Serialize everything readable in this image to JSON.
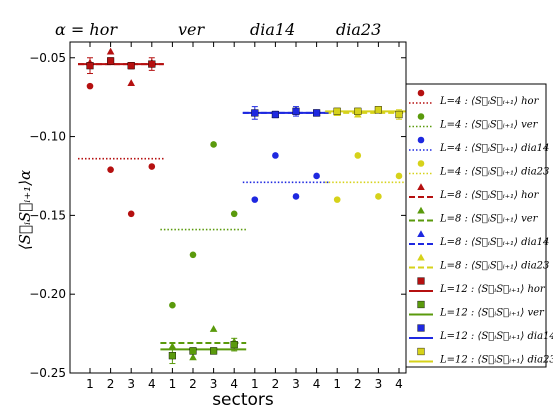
{
  "chart_data": {
    "type": "scatter",
    "xlabel": "sectors",
    "ylabel": "⟨S⃗ᵢS⃗ᵢ₊₁⟩α",
    "ylim": [
      -0.25,
      -0.04
    ],
    "yticks": [
      -0.05,
      -0.1,
      -0.15,
      -0.2,
      -0.25
    ],
    "ytick_labels": [
      "−0.05",
      "−0.10",
      "−0.15",
      "−0.20",
      "−0.25"
    ],
    "sector_labels": [
      "1",
      "2",
      "3",
      "4",
      "1",
      "2",
      "3",
      "4",
      "1",
      "2",
      "3",
      "4",
      "1",
      "2",
      "3",
      "4"
    ],
    "group_labels": [
      "α  =  hor",
      "ver",
      "dia14",
      "dia23"
    ],
    "grid": false,
    "legend_position": "right",
    "colors": {
      "hor": "#b51010",
      "ver": "#5a9a0c",
      "dia14": "#1e28e0",
      "dia23": "#d6d21a"
    },
    "series": [
      {
        "name": "L=4 : ⟨S⃗ᵢS⃗ᵢ₊₁⟩ hor",
        "group": "hor",
        "L": 4,
        "marker": "circle",
        "values": [
          -0.068,
          -0.121,
          -0.149,
          -0.119
        ],
        "mean": -0.114
      },
      {
        "name": "L=4 : ⟨S⃗ᵢS⃗ᵢ₊₁⟩ ver",
        "group": "ver",
        "L": 4,
        "marker": "circle",
        "values": [
          -0.207,
          -0.175,
          -0.105,
          -0.149
        ],
        "mean": -0.159
      },
      {
        "name": "L=4 : ⟨S⃗ᵢS⃗ᵢ₊₁⟩ dia14",
        "group": "dia14",
        "L": 4,
        "marker": "circle",
        "values": [
          -0.14,
          -0.112,
          -0.138,
          -0.125
        ],
        "mean": -0.129
      },
      {
        "name": "L=4 : ⟨S⃗ᵢS⃗ᵢ₊₁⟩ dia23",
        "group": "dia23",
        "L": 4,
        "marker": "circle",
        "values": [
          -0.14,
          -0.112,
          -0.138,
          -0.125
        ],
        "mean": -0.129
      },
      {
        "name": "L=8 : ⟨S⃗ᵢS⃗ᵢ₊₁⟩ hor",
        "group": "hor",
        "L": 8,
        "marker": "triangle",
        "values": [
          -0.053,
          -0.046,
          -0.066,
          -0.053
        ],
        "mean": -0.054
      },
      {
        "name": "L=8 : ⟨S⃗ᵢS⃗ᵢ₊₁⟩ ver",
        "group": "ver",
        "L": 8,
        "marker": "triangle",
        "values": [
          -0.233,
          -0.24,
          -0.222,
          -0.23
        ],
        "mean": -0.231
      },
      {
        "name": "L=8 : ⟨S⃗ᵢS⃗ᵢ₊₁⟩ dia14",
        "group": "dia14",
        "L": 8,
        "marker": "triangle",
        "values": [
          -0.085,
          -0.086,
          -0.083,
          -0.085
        ],
        "mean": -0.085
      },
      {
        "name": "L=8 : ⟨S⃗ᵢS⃗ᵢ₊₁⟩ dia23",
        "group": "dia23",
        "L": 8,
        "marker": "triangle",
        "values": [
          -0.085,
          -0.086,
          -0.083,
          -0.085
        ],
        "mean": -0.085
      },
      {
        "name": "L=12 : ⟨S⃗ᵢS⃗ᵢ₊₁⟩ hor",
        "group": "hor",
        "L": 12,
        "marker": "square",
        "values": [
          -0.055,
          -0.052,
          -0.055,
          -0.054
        ],
        "errors": [
          0.005,
          0.002,
          0.002,
          0.004
        ],
        "mean": -0.054
      },
      {
        "name": "L=12 : ⟨S⃗ᵢS⃗ᵢ₊₁⟩ ver",
        "group": "ver",
        "L": 12,
        "marker": "square",
        "values": [
          -0.239,
          -0.236,
          -0.236,
          -0.232
        ],
        "errors": [
          0.005,
          0.002,
          0.002,
          0.004
        ],
        "mean": -0.235
      },
      {
        "name": "L=12 : ⟨S⃗ᵢS⃗ᵢ₊₁⟩ dia14",
        "group": "dia14",
        "L": 12,
        "marker": "square",
        "values": [
          -0.085,
          -0.086,
          -0.084,
          -0.085
        ],
        "errors": [
          0.004,
          0.002,
          0.003,
          0.002
        ],
        "mean": -0.085
      },
      {
        "name": "L=12 : ⟨S⃗ᵢS⃗ᵢ₊₁⟩ dia23",
        "group": "dia23",
        "L": 12,
        "marker": "square",
        "values": [
          -0.084,
          -0.084,
          -0.083,
          -0.086
        ],
        "errors": [
          0.002,
          0.002,
          0.002,
          0.003
        ],
        "mean": -0.084
      }
    ]
  }
}
